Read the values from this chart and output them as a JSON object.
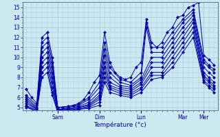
{
  "xlabel": "Température (°c)",
  "background_color": "#cce8f0",
  "line_color": "#0000aa",
  "grid_color": "#a0c8d8",
  "ylim": [
    4.7,
    15.5
  ],
  "xlim": [
    -2,
    110
  ],
  "yticks": [
    5,
    6,
    7,
    8,
    9,
    10,
    11,
    12,
    13,
    14,
    15
  ],
  "day_positions": [
    18,
    42,
    66,
    90,
    102
  ],
  "day_labels": [
    "Sam",
    "Dim",
    "Lun",
    "Mar",
    "Mer"
  ],
  "series": [
    [
      0,
      6.8,
      3,
      6.0,
      6,
      5.4,
      9,
      12.0,
      12,
      12.5,
      15,
      10.0,
      18,
      5.0,
      21,
      5.0,
      24,
      5.1,
      27,
      5.2,
      30,
      5.4,
      33,
      5.8,
      36,
      6.5,
      39,
      7.5,
      42,
      8.2,
      45,
      12.5,
      48,
      9.5,
      51,
      8.5,
      54,
      8.0,
      57,
      7.8,
      60,
      8.0,
      63,
      9.0,
      66,
      9.5,
      69,
      13.8,
      72,
      11.5,
      75,
      11.0,
      78,
      11.5,
      81,
      12.5,
      84,
      13.0,
      87,
      14.0,
      90,
      14.2,
      93,
      15.0,
      96,
      15.2,
      99,
      15.5,
      102,
      10.2,
      105,
      9.8,
      108,
      9.2
    ],
    [
      0,
      6.2,
      6,
      5.2,
      9,
      11.5,
      12,
      12.0,
      15,
      9.5,
      18,
      5.0,
      24,
      5.1,
      30,
      5.3,
      36,
      6.0,
      42,
      7.5,
      45,
      11.5,
      48,
      9.0,
      54,
      7.8,
      60,
      7.5,
      66,
      8.5,
      69,
      13.5,
      72,
      11.0,
      78,
      11.0,
      84,
      12.5,
      90,
      13.8,
      96,
      14.8,
      102,
      9.8,
      105,
      9.2,
      108,
      8.8
    ],
    [
      0,
      6.0,
      6,
      5.0,
      9,
      11.0,
      12,
      11.5,
      15,
      9.0,
      18,
      5.0,
      24,
      5.0,
      30,
      5.2,
      36,
      5.8,
      42,
      7.0,
      45,
      10.8,
      48,
      8.5,
      54,
      7.5,
      60,
      7.2,
      66,
      8.0,
      69,
      13.0,
      72,
      10.5,
      78,
      10.5,
      84,
      12.0,
      90,
      13.5,
      96,
      14.5,
      102,
      9.5,
      105,
      9.0,
      108,
      8.5
    ],
    [
      0,
      5.8,
      6,
      4.9,
      9,
      10.5,
      12,
      11.0,
      15,
      8.5,
      18,
      4.8,
      24,
      4.9,
      30,
      5.1,
      36,
      5.5,
      42,
      6.5,
      45,
      10.2,
      48,
      8.0,
      54,
      7.2,
      60,
      7.0,
      66,
      7.8,
      72,
      10.0,
      78,
      10.0,
      84,
      11.5,
      90,
      13.0,
      96,
      14.2,
      102,
      9.0,
      105,
      8.5,
      108,
      8.0
    ],
    [
      0,
      5.6,
      6,
      4.8,
      9,
      10.0,
      12,
      10.5,
      15,
      8.0,
      18,
      4.8,
      24,
      4.8,
      30,
      5.0,
      36,
      5.3,
      42,
      6.2,
      45,
      9.5,
      48,
      7.5,
      54,
      7.0,
      60,
      6.8,
      66,
      7.5,
      72,
      9.5,
      78,
      9.5,
      84,
      11.0,
      90,
      12.5,
      96,
      13.8,
      102,
      8.5,
      105,
      8.0,
      108,
      7.5
    ],
    [
      0,
      5.4,
      6,
      4.8,
      9,
      9.5,
      12,
      10.0,
      15,
      7.5,
      18,
      4.7,
      24,
      4.8,
      30,
      5.0,
      36,
      5.2,
      42,
      6.0,
      45,
      9.0,
      48,
      7.2,
      54,
      6.8,
      60,
      6.6,
      66,
      7.3,
      72,
      9.0,
      78,
      9.0,
      84,
      10.5,
      90,
      12.0,
      96,
      13.5,
      102,
      8.2,
      105,
      7.7,
      108,
      7.2
    ],
    [
      0,
      5.2,
      6,
      4.7,
      9,
      9.0,
      12,
      9.5,
      15,
      7.0,
      18,
      4.7,
      24,
      4.7,
      30,
      4.9,
      36,
      5.1,
      42,
      5.8,
      45,
      8.5,
      48,
      7.0,
      54,
      6.6,
      60,
      6.4,
      66,
      7.0,
      72,
      8.5,
      78,
      8.5,
      84,
      10.0,
      90,
      11.5,
      96,
      13.0,
      102,
      8.0,
      105,
      7.5,
      108,
      7.0
    ],
    [
      0,
      5.1,
      6,
      4.6,
      9,
      8.5,
      12,
      9.0,
      15,
      6.5,
      18,
      4.6,
      24,
      4.7,
      30,
      4.8,
      36,
      5.0,
      42,
      5.5,
      45,
      8.0,
      48,
      6.8,
      54,
      6.4,
      60,
      6.2,
      66,
      6.8,
      72,
      8.2,
      78,
      8.2,
      84,
      9.5,
      90,
      11.0,
      96,
      12.5,
      102,
      7.7,
      105,
      7.2,
      108,
      6.8
    ],
    [
      0,
      5.0,
      6,
      4.6,
      9,
      8.0,
      12,
      8.5,
      15,
      6.2,
      18,
      4.5,
      24,
      4.6,
      30,
      4.8,
      36,
      4.9,
      42,
      5.2,
      45,
      7.5,
      48,
      6.5,
      54,
      6.2,
      60,
      6.0,
      66,
      6.5,
      72,
      7.8,
      78,
      8.0,
      84,
      9.0,
      90,
      10.5,
      96,
      12.0,
      102,
      7.5,
      105,
      7.0,
      108,
      6.5
    ]
  ]
}
